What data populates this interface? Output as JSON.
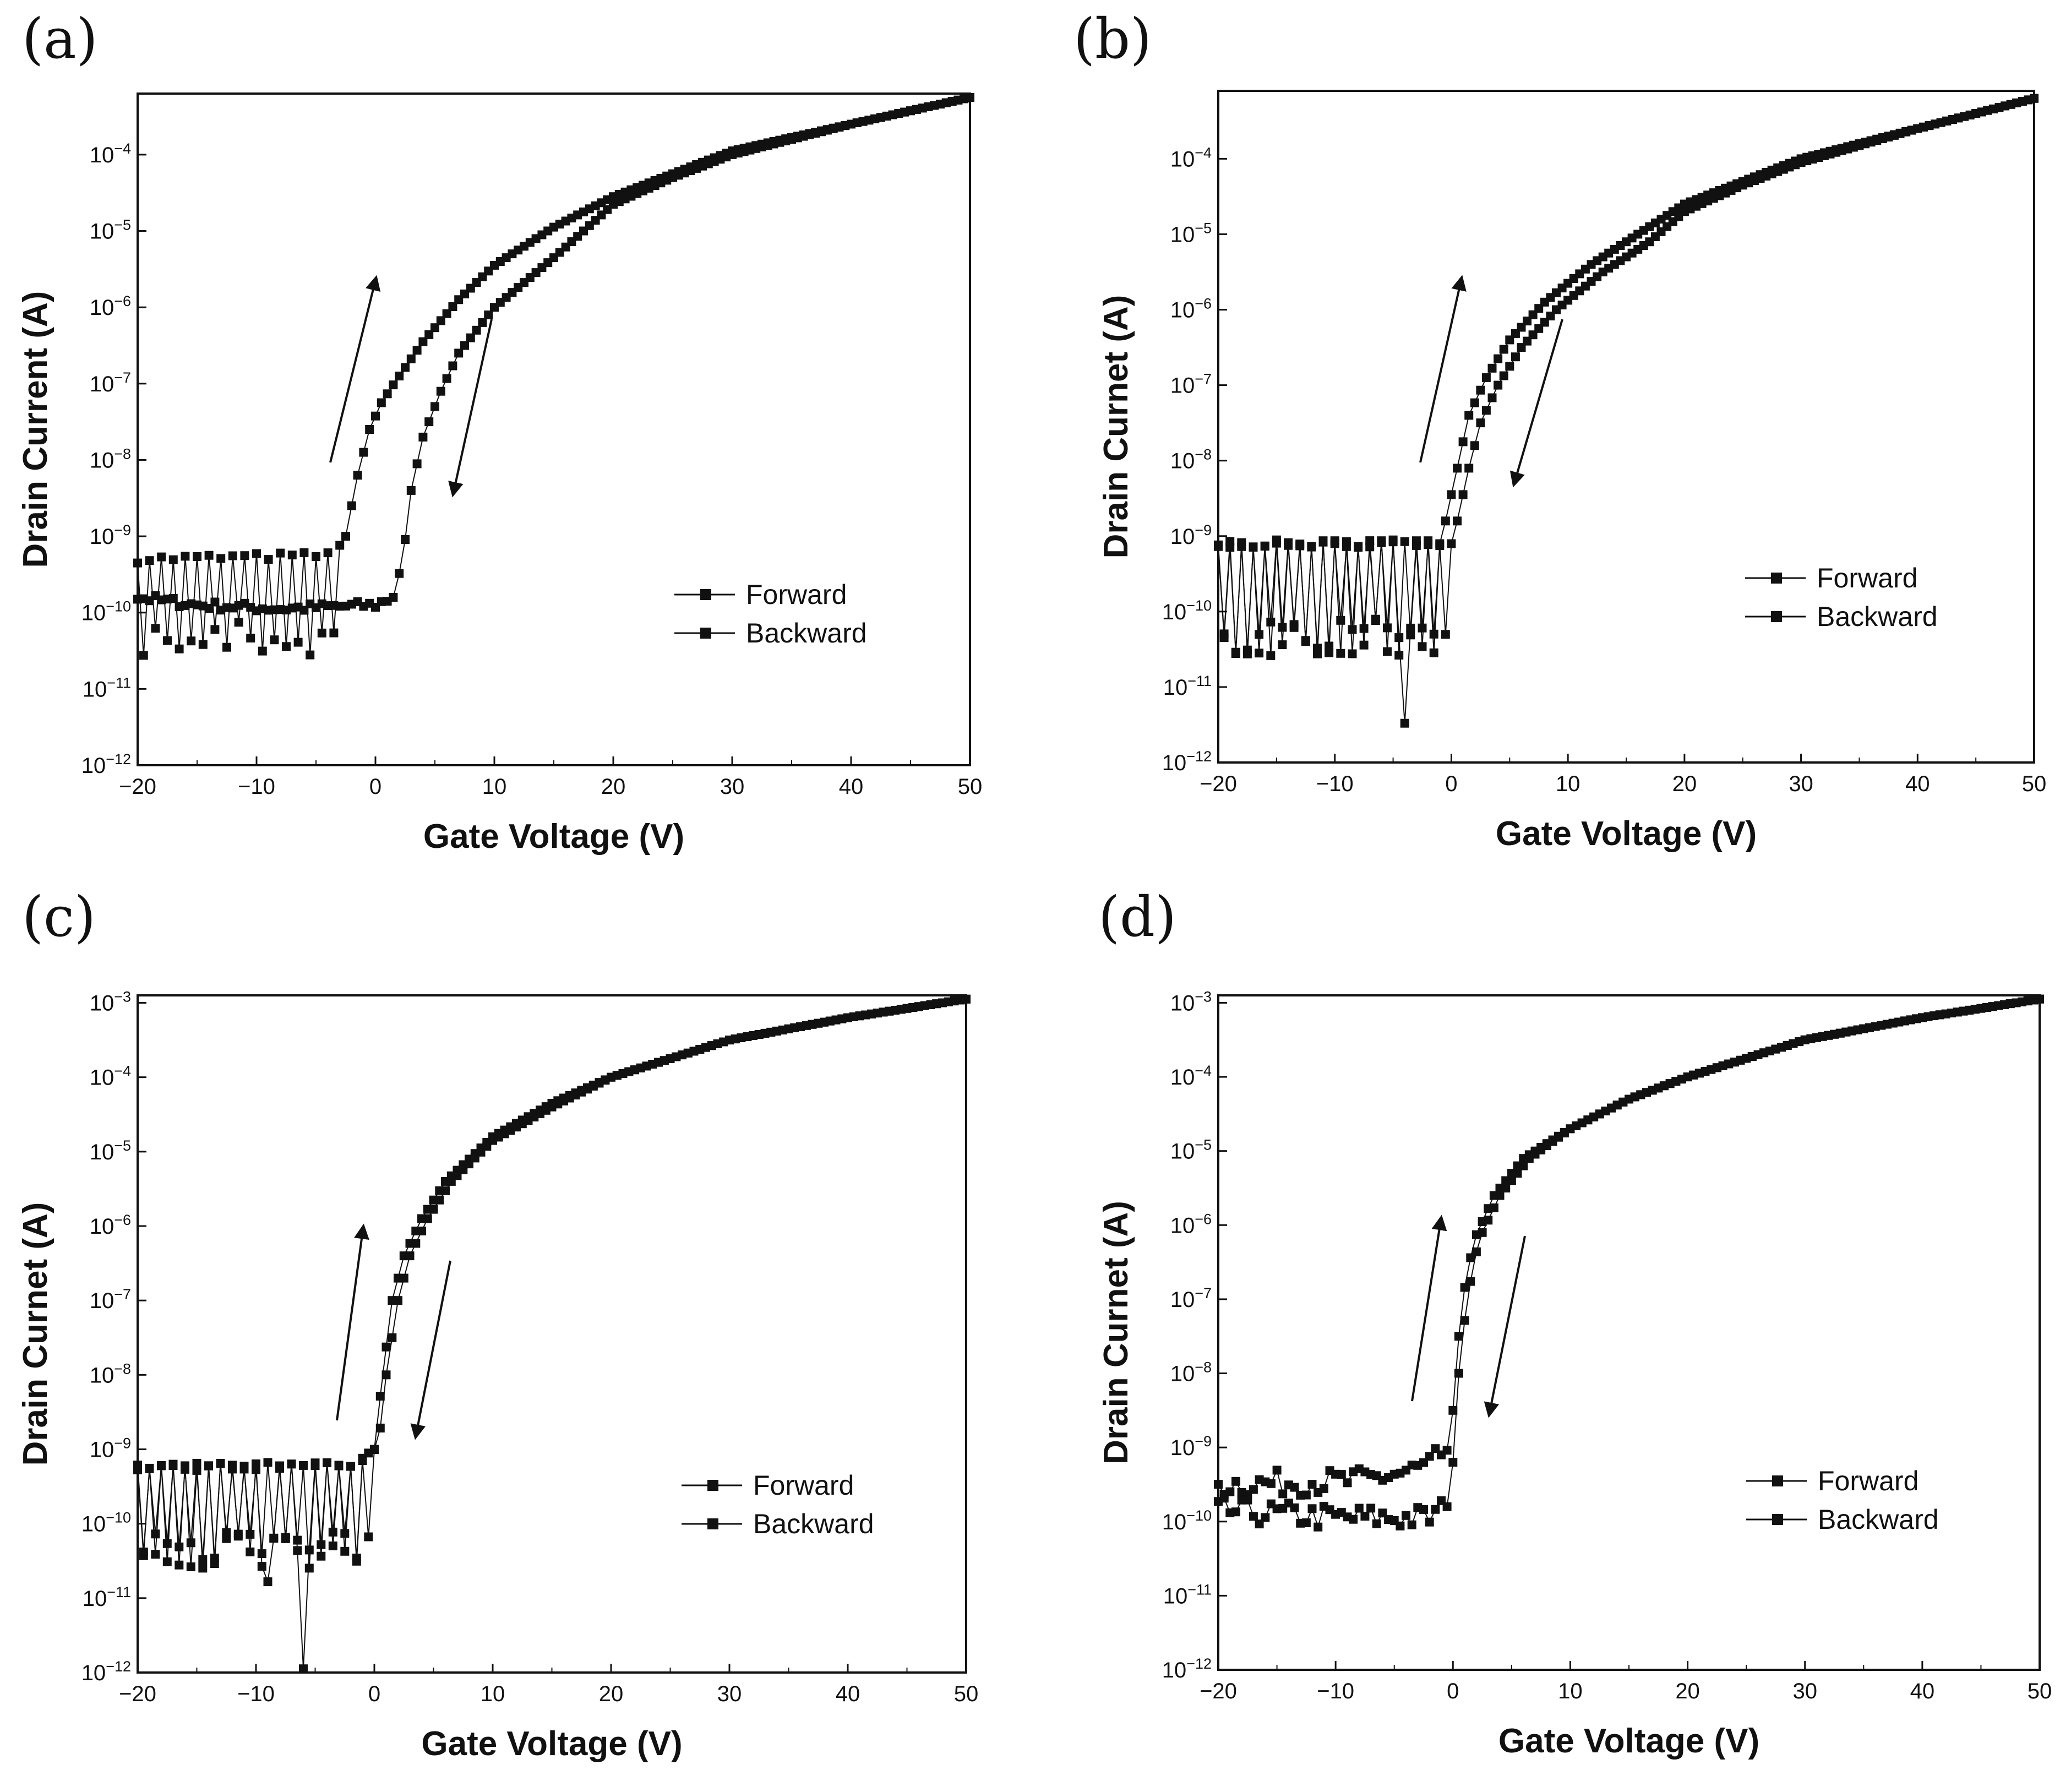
{
  "figure": {
    "background": "#ffffff",
    "ink": "#111111"
  },
  "chart_data": [
    {
      "type": "scatter",
      "panel_label": "(a)",
      "xlabel": "Gate Voltage (V)",
      "ylabel": "Drain Current (A)",
      "xlim": [
        -20,
        50
      ],
      "ylim_log10": [
        -12,
        -3.2
      ],
      "y_scale": "log",
      "x_ticks": [
        "−20",
        "−10",
        "0",
        "10",
        "20",
        "30",
        "40",
        "50"
      ],
      "y_ticks": [
        {
          "base": "10",
          "exp": "-12"
        },
        {
          "base": "10",
          "exp": "-11"
        },
        {
          "base": "10",
          "exp": "-10"
        },
        {
          "base": "10",
          "exp": "-9"
        },
        {
          "base": "10",
          "exp": "-8"
        },
        {
          "base": "10",
          "exp": "-7"
        },
        {
          "base": "10",
          "exp": "-6"
        },
        {
          "base": "10",
          "exp": "-5"
        },
        {
          "base": "10",
          "exp": "-4"
        }
      ],
      "legend": {
        "position": "center-right",
        "entries": [
          "Forward",
          "Backward"
        ]
      },
      "annotations": [
        "up-arrow (forward sweep)",
        "down-arrow (backward sweep)"
      ],
      "series": [
        {
          "name": "Forward",
          "on_voltage": -2,
          "noise": "oscillating ~6e-10 / ~5e-11",
          "curve_log10": [
            [
              -20,
              -9.3
            ],
            [
              -4,
              -9.25
            ],
            [
              -2.5,
              -9.0
            ],
            [
              -1.5,
              -8.2
            ],
            [
              -0.5,
              -7.6
            ],
            [
              0.5,
              -7.25
            ],
            [
              2,
              -6.9
            ],
            [
              4,
              -6.45
            ],
            [
              7,
              -5.9
            ],
            [
              10,
              -5.45
            ],
            [
              15,
              -4.95
            ],
            [
              20,
              -4.55
            ],
            [
              25,
              -4.25
            ],
            [
              30,
              -3.95
            ],
            [
              40,
              -3.6
            ],
            [
              50,
              -3.25
            ]
          ]
        },
        {
          "name": "Backward",
          "on_voltage": 2,
          "noise": "smooth ~1.5e-10",
          "curve_log10": [
            [
              -20,
              -9.8
            ],
            [
              -15,
              -9.9
            ],
            [
              -8,
              -9.95
            ],
            [
              0,
              -9.9
            ],
            [
              1.5,
              -9.8
            ],
            [
              2.3,
              -9.3
            ],
            [
              3,
              -8.4
            ],
            [
              4,
              -7.7
            ],
            [
              5.5,
              -7.1
            ],
            [
              7,
              -6.6
            ],
            [
              10,
              -6.0
            ],
            [
              15,
              -5.35
            ],
            [
              20,
              -4.65
            ],
            [
              25,
              -4.3
            ],
            [
              30,
              -4.0
            ],
            [
              40,
              -3.6
            ],
            [
              50,
              -3.25
            ]
          ]
        }
      ]
    },
    {
      "type": "scatter",
      "panel_label": "(b)",
      "xlabel": "Gate Voltage (V)",
      "ylabel": "Drain Curnet (A)",
      "xlim": [
        -20,
        50
      ],
      "ylim_log10": [
        -12,
        -3.1
      ],
      "y_scale": "log",
      "x_ticks": [
        "−20",
        "−10",
        "0",
        "10",
        "20",
        "30",
        "40",
        "50"
      ],
      "y_ticks": [
        {
          "base": "10",
          "exp": "-12"
        },
        {
          "base": "10",
          "exp": "-11"
        },
        {
          "base": "10",
          "exp": "-10"
        },
        {
          "base": "10",
          "exp": "-9"
        },
        {
          "base": "10",
          "exp": "-8"
        },
        {
          "base": "10",
          "exp": "-7"
        },
        {
          "base": "10",
          "exp": "-6"
        },
        {
          "base": "10",
          "exp": "-5"
        },
        {
          "base": "10",
          "exp": "-4"
        }
      ],
      "legend": {
        "position": "center-right",
        "entries": [
          "Forward",
          "Backward"
        ]
      },
      "annotations": [
        "up-arrow (forward sweep)",
        "down-arrow (backward sweep)"
      ],
      "series": [
        {
          "name": "Forward",
          "on_voltage": -0.5,
          "noise": "oscillating ~8e-10 / ~5e-11, dip to 3e-12 near -4 V",
          "curve_log10": [
            [
              -20,
              -9.1
            ],
            [
              -1,
              -9.1
            ],
            [
              -0.5,
              -8.8
            ],
            [
              0.5,
              -8.1
            ],
            [
              1.5,
              -7.4
            ],
            [
              3,
              -6.9
            ],
            [
              5,
              -6.4
            ],
            [
              8,
              -5.9
            ],
            [
              12,
              -5.4
            ],
            [
              16,
              -5.0
            ],
            [
              20,
              -4.6
            ],
            [
              25,
              -4.3
            ],
            [
              30,
              -4.0
            ],
            [
              40,
              -3.6
            ],
            [
              50,
              -3.2
            ]
          ]
        },
        {
          "name": "Backward",
          "on_voltage": 0.5,
          "noise": "oscillating",
          "curve_log10": [
            [
              -20,
              -9.1
            ],
            [
              0,
              -9.1
            ],
            [
              0.5,
              -8.8
            ],
            [
              1.5,
              -8.1
            ],
            [
              2.5,
              -7.5
            ],
            [
              4,
              -7.0
            ],
            [
              6,
              -6.5
            ],
            [
              9,
              -6.0
            ],
            [
              13,
              -5.5
            ],
            [
              17,
              -5.1
            ],
            [
              20,
              -4.7
            ],
            [
              25,
              -4.35
            ],
            [
              30,
              -4.05
            ],
            [
              40,
              -3.6
            ],
            [
              50,
              -3.2
            ]
          ]
        }
      ]
    },
    {
      "type": "scatter",
      "panel_label": "(c)",
      "xlabel": "Gate Voltage (V)",
      "ylabel": "Drain Curnet (A)",
      "xlim": [
        -20,
        50
      ],
      "ylim_log10": [
        -12,
        -2.9
      ],
      "y_scale": "log",
      "x_ticks": [
        "−20",
        "−10",
        "0",
        "10",
        "20",
        "30",
        "40",
        "50"
      ],
      "y_ticks": [
        {
          "base": "10",
          "exp": "-12"
        },
        {
          "base": "10",
          "exp": "-11"
        },
        {
          "base": "10",
          "exp": "-10"
        },
        {
          "base": "10",
          "exp": "-9"
        },
        {
          "base": "10",
          "exp": "-8"
        },
        {
          "base": "10",
          "exp": "-7"
        },
        {
          "base": "10",
          "exp": "-6"
        },
        {
          "base": "10",
          "exp": "-5"
        },
        {
          "base": "10",
          "exp": "-4"
        },
        {
          "base": "10",
          "exp": "-3"
        }
      ],
      "legend": {
        "position": "lower-right",
        "entries": [
          "Forward",
          "Backward"
        ]
      },
      "annotations": [
        "up-arrow (forward sweep)",
        "down-arrow (backward sweep)"
      ],
      "series": [
        {
          "name": "Forward",
          "on_voltage": 0,
          "noise": "oscillating ~6e-10 / ~1e-10, dip to 1e-12 at -6 V",
          "curve_log10": [
            [
              -20,
              -9.25
            ],
            [
              -2,
              -9.2
            ],
            [
              0,
              -9.0
            ],
            [
              0.7,
              -8.0
            ],
            [
              1.5,
              -7.0
            ],
            [
              2.5,
              -6.4
            ],
            [
              4,
              -5.9
            ],
            [
              6,
              -5.4
            ],
            [
              10,
              -4.8
            ],
            [
              15,
              -4.35
            ],
            [
              20,
              -4.0
            ],
            [
              30,
              -3.5
            ],
            [
              40,
              -3.2
            ],
            [
              50,
              -2.95
            ]
          ]
        },
        {
          "name": "Backward",
          "on_voltage": 1,
          "noise": "oscillating",
          "curve_log10": [
            [
              -20,
              -9.25
            ],
            [
              -1,
              -9.2
            ],
            [
              0.3,
              -9.0
            ],
            [
              1,
              -8.0
            ],
            [
              2,
              -7.0
            ],
            [
              3,
              -6.4
            ],
            [
              4.5,
              -5.9
            ],
            [
              6.5,
              -5.4
            ],
            [
              10,
              -4.85
            ],
            [
              15,
              -4.4
            ],
            [
              20,
              -4.0
            ],
            [
              30,
              -3.5
            ],
            [
              40,
              -3.2
            ],
            [
              50,
              -2.95
            ]
          ]
        }
      ]
    },
    {
      "type": "scatter",
      "panel_label": "(d)",
      "xlabel": "Gate Voltage (V)",
      "ylabel": "Drain Curnet (A)",
      "xlim": [
        -20,
        50
      ],
      "ylim_log10": [
        -12,
        -2.9
      ],
      "y_scale": "log",
      "x_ticks": [
        "−20",
        "−10",
        "0",
        "10",
        "20",
        "30",
        "40",
        "50"
      ],
      "y_ticks": [
        {
          "base": "10",
          "exp": "-12"
        },
        {
          "base": "10",
          "exp": "-11"
        },
        {
          "base": "10",
          "exp": "-10"
        },
        {
          "base": "10",
          "exp": "-9"
        },
        {
          "base": "10",
          "exp": "-8"
        },
        {
          "base": "10",
          "exp": "-7"
        },
        {
          "base": "10",
          "exp": "-6"
        },
        {
          "base": "10",
          "exp": "-5"
        },
        {
          "base": "10",
          "exp": "-4"
        },
        {
          "base": "10",
          "exp": "-3"
        }
      ],
      "legend": {
        "position": "lower-right",
        "entries": [
          "Forward",
          "Backward"
        ]
      },
      "annotations": [
        "up-arrow (forward sweep)",
        "down-arrow (backward sweep)"
      ],
      "series": [
        {
          "name": "Forward",
          "on_voltage": -0.5,
          "noise": "~3e-10 rising to 1e-9",
          "curve_log10": [
            [
              -20,
              -9.5
            ],
            [
              -8,
              -9.45
            ],
            [
              -3,
              -9.3
            ],
            [
              -1,
              -9.1
            ],
            [
              -0.2,
              -9.0
            ],
            [
              0.2,
              -8.0
            ],
            [
              0.8,
              -7.0
            ],
            [
              1.8,
              -6.2
            ],
            [
              3.5,
              -5.6
            ],
            [
              6,
              -5.1
            ],
            [
              10,
              -4.7
            ],
            [
              15,
              -4.3
            ],
            [
              20,
              -4.0
            ],
            [
              30,
              -3.5
            ],
            [
              40,
              -3.2
            ],
            [
              50,
              -2.95
            ]
          ]
        },
        {
          "name": "Backward",
          "on_voltage": 0,
          "noise": "~1.2e-10",
          "curve_log10": [
            [
              -20,
              -9.85
            ],
            [
              -10,
              -9.95
            ],
            [
              -2,
              -9.95
            ],
            [
              -0.5,
              -9.8
            ],
            [
              0,
              -9.2
            ],
            [
              0.5,
              -8.0
            ],
            [
              1.2,
              -7.0
            ],
            [
              2.2,
              -6.2
            ],
            [
              4,
              -5.6
            ],
            [
              6.5,
              -5.1
            ],
            [
              10,
              -4.7
            ],
            [
              15,
              -4.3
            ],
            [
              20,
              -4.0
            ],
            [
              30,
              -3.5
            ],
            [
              40,
              -3.2
            ],
            [
              50,
              -2.95
            ]
          ]
        }
      ]
    }
  ]
}
